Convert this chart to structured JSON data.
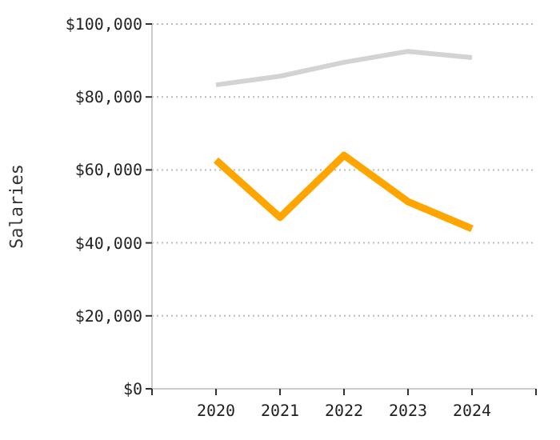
{
  "chart_data": {
    "type": "line",
    "ylabel": "Salaries",
    "x": [
      2020,
      2021,
      2022,
      2023,
      2024
    ],
    "xlim": [
      2019,
      2025
    ],
    "xticks": [
      {
        "value": 2019,
        "label": null
      },
      2020,
      2021,
      2022,
      2023,
      2024,
      {
        "value": 2025,
        "label": null
      }
    ],
    "ylim": [
      0,
      100000
    ],
    "yticks": [
      {
        "value": 0,
        "label": "$0"
      },
      {
        "value": 20000,
        "label": "$20,000"
      },
      {
        "value": 40000,
        "label": "$40,000"
      },
      {
        "value": 60000,
        "label": "$60,000"
      },
      {
        "value": 80000,
        "label": "$80,000"
      },
      {
        "value": 100000,
        "label": "$100,000"
      }
    ],
    "grid": "y",
    "series": [
      {
        "color": "#d3d3d3",
        "values": [
          83300,
          85700,
          89500,
          92500,
          90800
        ]
      },
      {
        "color": "#ffa500",
        "values": [
          62700,
          47000,
          64000,
          51300,
          43900
        ]
      }
    ]
  }
}
